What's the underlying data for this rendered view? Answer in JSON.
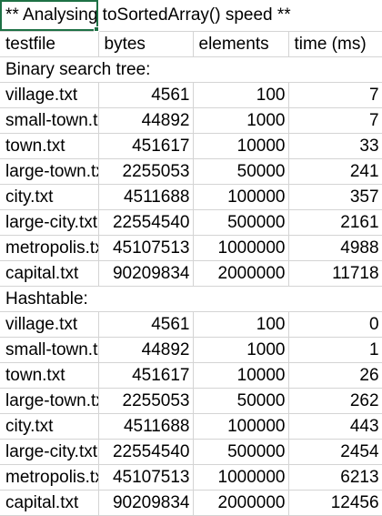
{
  "sheet": {
    "title": "** Analysing toSortedArray() speed **",
    "headers": [
      "testfile",
      "bytes",
      "elements",
      "time (ms)"
    ],
    "sections": [
      {
        "label": "Binary search tree:",
        "rows": [
          {
            "file": "village.txt",
            "bytes": "4561",
            "elements": "100",
            "time": "7"
          },
          {
            "file": "small-town.txt",
            "bytes": "44892",
            "elements": "1000",
            "time": "7"
          },
          {
            "file": "town.txt",
            "bytes": "451617",
            "elements": "10000",
            "time": "33"
          },
          {
            "file": "large-town.txt",
            "bytes": "2255053",
            "elements": "50000",
            "time": "241"
          },
          {
            "file": "city.txt",
            "bytes": "4511688",
            "elements": "100000",
            "time": "357"
          },
          {
            "file": "large-city.txt",
            "bytes": "22554540",
            "elements": "500000",
            "time": "2161"
          },
          {
            "file": "metropolis.txt",
            "bytes": "45107513",
            "elements": "1000000",
            "time": "4988"
          },
          {
            "file": "capital.txt",
            "bytes": "90209834",
            "elements": "2000000",
            "time": "11718"
          }
        ]
      },
      {
        "label": "Hashtable:",
        "rows": [
          {
            "file": "village.txt",
            "bytes": "4561",
            "elements": "100",
            "time": "0"
          },
          {
            "file": "small-town.txt",
            "bytes": "44892",
            "elements": "1000",
            "time": "1"
          },
          {
            "file": "town.txt",
            "bytes": "451617",
            "elements": "10000",
            "time": "26"
          },
          {
            "file": "large-town.txt",
            "bytes": "2255053",
            "elements": "50000",
            "time": "262"
          },
          {
            "file": "city.txt",
            "bytes": "4511688",
            "elements": "100000",
            "time": "443"
          },
          {
            "file": "large-city.txt",
            "bytes": "22554540",
            "elements": "500000",
            "time": "2454"
          },
          {
            "file": "metropolis.txt",
            "bytes": "45107513",
            "elements": "1000000",
            "time": "6213"
          },
          {
            "file": "capital.txt",
            "bytes": "90209834",
            "elements": "2000000",
            "time": "12456"
          }
        ]
      }
    ]
  }
}
